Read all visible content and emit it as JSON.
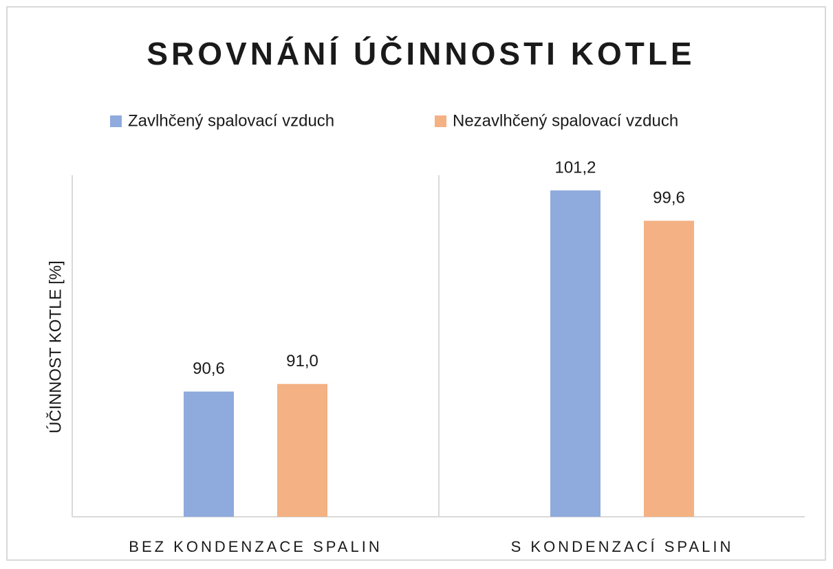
{
  "chart_data": {
    "type": "bar",
    "title": "SROVNÁNÍ ÚČINNOSTI KOTLE",
    "y_label": "ÚČINNOST KOTLE [%]",
    "categories": [
      "BEZ KONDENZACE SPALIN",
      "S KONDENZACÍ SPALIN"
    ],
    "series": [
      {
        "name": "Zavlhčený spalovací vzduch",
        "color": "#8faadc",
        "values": [
          90.6,
          101.2
        ],
        "value_labels": [
          "90,6",
          "101,2"
        ]
      },
      {
        "name": "Nezavlhčený spalovací vzduch",
        "color": "#f4b183",
        "values": [
          91.0,
          99.6
        ],
        "value_labels": [
          "91,0",
          "99,6"
        ]
      }
    ],
    "ylim": [
      84,
      102
    ],
    "legend": "top"
  }
}
